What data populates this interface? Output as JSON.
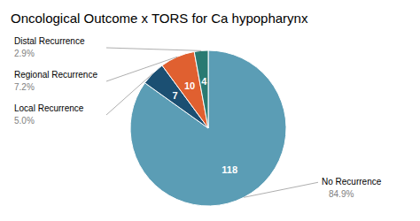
{
  "chart_data": {
    "type": "pie",
    "title": "Oncological Outcome x TORS for Ca hypopharynx",
    "categories": [
      "No Recurrence",
      "Local Recurrence",
      "Regional Recurrence",
      "Distal Recurrence"
    ],
    "values": [
      118,
      7,
      10,
      4
    ],
    "colors": [
      "#5b9db5",
      "#1b4f72",
      "#e06030",
      "#2a7a72"
    ],
    "data_labels": true,
    "annotations": [
      "84.9%",
      "5.0%",
      "7.2%",
      "2.9%"
    ]
  }
}
